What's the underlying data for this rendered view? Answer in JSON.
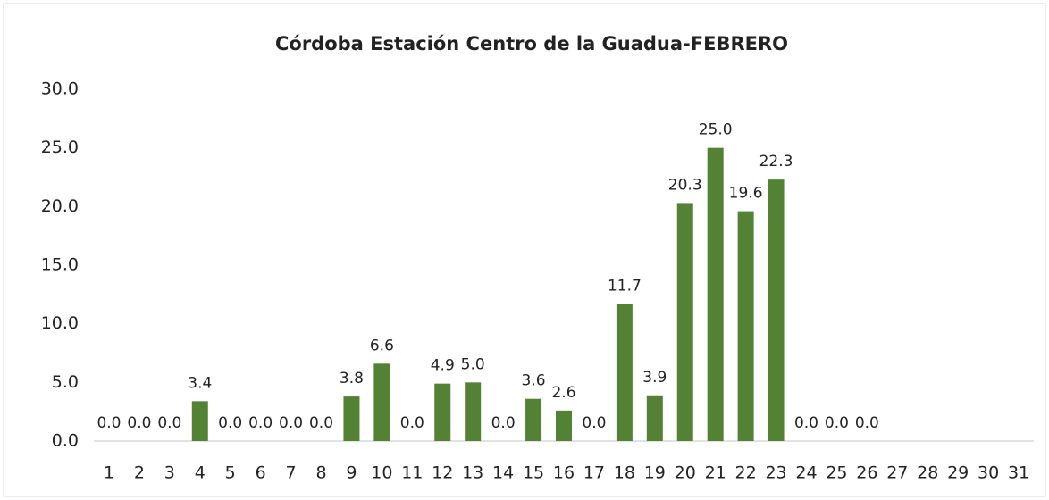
{
  "chart_data": {
    "type": "bar",
    "title": "Córdoba Estación Centro de la Guadua-FEBRERO",
    "categories": [
      "1",
      "2",
      "3",
      "4",
      "5",
      "6",
      "7",
      "8",
      "9",
      "10",
      "11",
      "12",
      "13",
      "14",
      "15",
      "16",
      "17",
      "18",
      "19",
      "20",
      "21",
      "22",
      "23",
      "24",
      "25",
      "26",
      "27",
      "28",
      "29",
      "30",
      "31"
    ],
    "values": [
      0,
      0,
      0,
      3.4,
      0,
      0,
      0,
      0,
      3.8,
      6.6,
      0,
      4.9,
      5.0,
      0,
      3.6,
      2.6,
      0,
      11.7,
      3.9,
      20.3,
      25.0,
      19.6,
      22.3,
      0,
      0,
      0,
      null,
      null,
      null,
      null,
      null
    ],
    "value_labels": [
      "0.0",
      "0.0",
      "0.0",
      "3.4",
      "0.0",
      "0.0",
      "0.0",
      "0.0",
      "3.8",
      "6.6",
      "0.0",
      "4.9",
      "5.0",
      "0.0",
      "3.6",
      "2.6",
      "0.0",
      "11.7",
      "3.9",
      "20.3",
      "25.0",
      "19.6",
      "22.3",
      "0.0",
      "0.0",
      "0.0",
      null,
      null,
      null,
      null,
      null
    ],
    "color": "#548235",
    "ylim": [
      0,
      30
    ],
    "yticks": [
      {
        "value": 0,
        "label": "0.0"
      },
      {
        "value": 5,
        "label": "5.0"
      },
      {
        "value": 10,
        "label": "10.0"
      },
      {
        "value": 15,
        "label": "15.0"
      },
      {
        "value": 20,
        "label": "20.0"
      },
      {
        "value": 25,
        "label": "25.0"
      },
      {
        "value": 30,
        "label": "30.0"
      }
    ],
    "grid": false
  }
}
